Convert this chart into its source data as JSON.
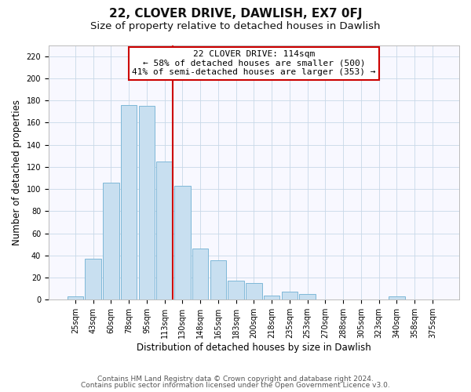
{
  "title": "22, CLOVER DRIVE, DAWLISH, EX7 0FJ",
  "subtitle": "Size of property relative to detached houses in Dawlish",
  "xlabel": "Distribution of detached houses by size in Dawlish",
  "ylabel": "Number of detached properties",
  "bar_labels": [
    "25sqm",
    "43sqm",
    "60sqm",
    "78sqm",
    "95sqm",
    "113sqm",
    "130sqm",
    "148sqm",
    "165sqm",
    "183sqm",
    "200sqm",
    "218sqm",
    "235sqm",
    "253sqm",
    "270sqm",
    "288sqm",
    "305sqm",
    "323sqm",
    "340sqm",
    "358sqm",
    "375sqm"
  ],
  "bar_values": [
    3,
    37,
    106,
    176,
    175,
    125,
    103,
    46,
    36,
    17,
    15,
    4,
    7,
    5,
    0,
    0,
    0,
    0,
    3,
    0,
    0
  ],
  "bar_color": "#c8dff0",
  "bar_edge_color": "#7fb8d8",
  "vline_bar_index": 5,
  "vline_color": "#cc0000",
  "ylim": [
    0,
    230
  ],
  "yticks": [
    0,
    20,
    40,
    60,
    80,
    100,
    120,
    140,
    160,
    180,
    200,
    220
  ],
  "annotation_title": "22 CLOVER DRIVE: 114sqm",
  "annotation_line1": "← 58% of detached houses are smaller (500)",
  "annotation_line2": "41% of semi-detached houses are larger (353) →",
  "footer1": "Contains HM Land Registry data © Crown copyright and database right 2024.",
  "footer2": "Contains public sector information licensed under the Open Government Licence v3.0.",
  "title_fontsize": 11,
  "subtitle_fontsize": 9.5,
  "label_fontsize": 8.5,
  "tick_fontsize": 7,
  "annotation_fontsize": 8,
  "footer_fontsize": 6.5
}
